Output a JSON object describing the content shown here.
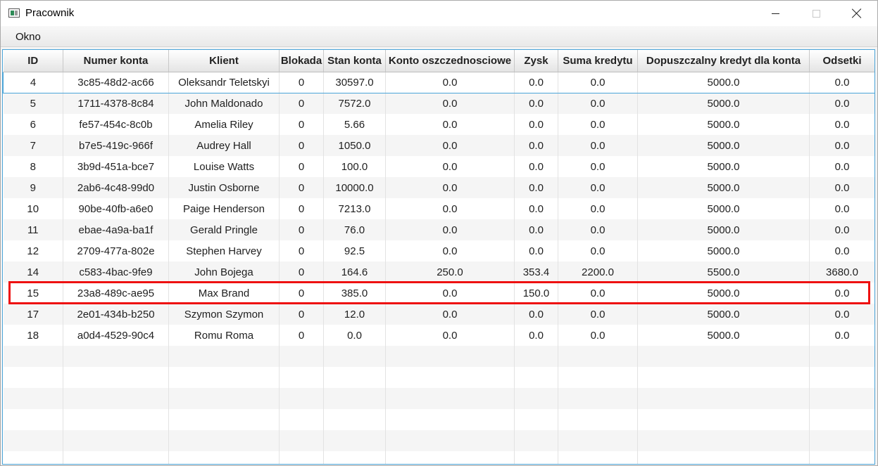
{
  "window": {
    "title": "Pracownik",
    "icons": {
      "app": "app-window-icon",
      "minimize": "minimize-icon",
      "maximize": "maximize-icon",
      "close": "close-icon"
    }
  },
  "menu": {
    "items": [
      "Okno"
    ]
  },
  "table": {
    "columns": [
      "ID",
      "Numer konta",
      "Klient",
      "Blokada",
      "Stan konta",
      "Konto oszczednosciowe",
      "Zysk",
      "Suma kredytu",
      "Dopuszczalny kredyt dla konta",
      "Odsetki"
    ],
    "rows": [
      [
        "4",
        "3c85-48d2-ac66",
        "Oleksandr Teletskyi",
        "0",
        "30597.0",
        "0.0",
        "0.0",
        "0.0",
        "5000.0",
        "0.0"
      ],
      [
        "5",
        "1711-4378-8c84",
        "John Maldonado",
        "0",
        "7572.0",
        "0.0",
        "0.0",
        "0.0",
        "5000.0",
        "0.0"
      ],
      [
        "6",
        "fe57-454c-8c0b",
        "Amelia Riley",
        "0",
        "5.66",
        "0.0",
        "0.0",
        "0.0",
        "5000.0",
        "0.0"
      ],
      [
        "7",
        "b7e5-419c-966f",
        "Audrey Hall",
        "0",
        "1050.0",
        "0.0",
        "0.0",
        "0.0",
        "5000.0",
        "0.0"
      ],
      [
        "8",
        "3b9d-451a-bce7",
        "Louise Watts",
        "0",
        "100.0",
        "0.0",
        "0.0",
        "0.0",
        "5000.0",
        "0.0"
      ],
      [
        "9",
        "2ab6-4c48-99d0",
        "Justin Osborne",
        "0",
        "10000.0",
        "0.0",
        "0.0",
        "0.0",
        "5000.0",
        "0.0"
      ],
      [
        "10",
        "90be-40fb-a6e0",
        "Paige Henderson",
        "0",
        "7213.0",
        "0.0",
        "0.0",
        "0.0",
        "5000.0",
        "0.0"
      ],
      [
        "11",
        "ebae-4a9a-ba1f",
        "Gerald Pringle",
        "0",
        "76.0",
        "0.0",
        "0.0",
        "0.0",
        "5000.0",
        "0.0"
      ],
      [
        "12",
        "2709-477a-802e",
        "Stephen Harvey",
        "0",
        "92.5",
        "0.0",
        "0.0",
        "0.0",
        "5000.0",
        "0.0"
      ],
      [
        "14",
        "c583-4bac-9fe9",
        "John Bojega",
        "0",
        "164.6",
        "250.0",
        "353.4",
        "2200.0",
        "5500.0",
        "3680.0"
      ],
      [
        "15",
        "23a8-489c-ae95",
        "Max Brand",
        "0",
        "385.0",
        "0.0",
        "150.0",
        "0.0",
        "5000.0",
        "0.0"
      ],
      [
        "17",
        "2e01-434b-b250",
        "Szymon Szymon",
        "0",
        "12.0",
        "0.0",
        "0.0",
        "0.0",
        "5000.0",
        "0.0"
      ],
      [
        "18",
        "a0d4-4529-90c4",
        "Romu Roma",
        "0",
        "0.0",
        "0.0",
        "0.0",
        "0.0",
        "5000.0",
        "0.0"
      ]
    ],
    "empty_rows": 6,
    "focused_row_index": 0,
    "highlighted_row_index": 10
  },
  "colors": {
    "focus_border": "#4aa4d8",
    "highlight_border": "#ee1111",
    "row_alt": "#f5f5f5",
    "header_gradient_end": "#e4e4e4"
  }
}
